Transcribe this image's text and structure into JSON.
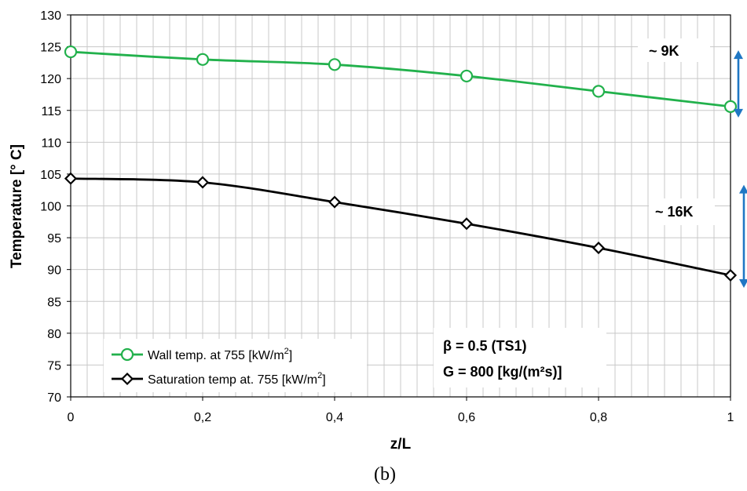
{
  "chart_data": {
    "type": "line",
    "xlabel": "z/L",
    "ylabel": "Temperature [° C]",
    "xlim": [
      0,
      1
    ],
    "ylim": [
      70,
      130
    ],
    "x_ticks": [
      "0",
      "0,2",
      "0,4",
      "0,6",
      "0,8",
      "1"
    ],
    "y_ticks": [
      "70",
      "75",
      "80",
      "85",
      "90",
      "95",
      "100",
      "105",
      "110",
      "115",
      "120",
      "125",
      "130"
    ],
    "grid": true,
    "legend_position": "bottom-left",
    "x": [
      0,
      0.2,
      0.4,
      0.6,
      0.8,
      1
    ],
    "series": [
      {
        "name": "Wall temp. at 755 [kW/m2]",
        "legend_text": "Wall temp. at 755 [kW/m",
        "legend_sup": "2",
        "legend_close": "]",
        "color": "#22b14c",
        "marker": "circle",
        "values": [
          124.2,
          123.0,
          122.2,
          120.4,
          118.0,
          115.6
        ]
      },
      {
        "name": "Saturation temp at. 755 [kW/m2]",
        "legend_text": "Saturation temp at. 755 [kW/m",
        "legend_sup": "2",
        "legend_close": "]",
        "color": "#000000",
        "marker": "diamond",
        "values": [
          104.3,
          103.7,
          100.6,
          97.2,
          93.4,
          89.1
        ]
      }
    ],
    "annotations": {
      "diff_wall": "~ 9K",
      "diff_sat": "~ 16K",
      "beta": "β = 0.5 (TS1)",
      "mass_flux": "G = 800 [kg/(m²s)]",
      "arrow_color": "#1f77c4"
    },
    "caption": "(b)"
  }
}
